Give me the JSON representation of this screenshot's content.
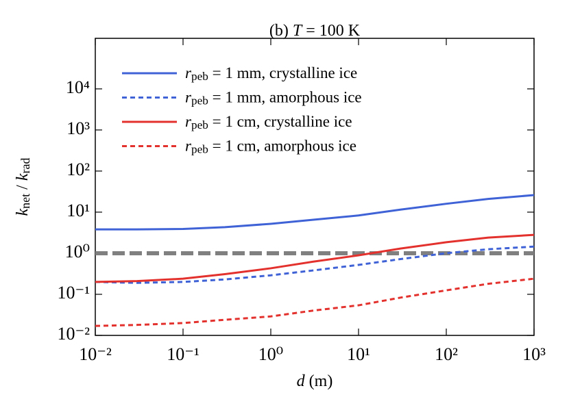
{
  "chart_data": {
    "type": "line",
    "title": "(b) T = 100 K",
    "xlabel": "d (m)",
    "ylabel": "knet / krad",
    "xscale": "log",
    "yscale": "log",
    "x": [
      0.01,
      0.03,
      0.1,
      0.3,
      1,
      3,
      10,
      30,
      100,
      300,
      1000
    ],
    "series": [
      {
        "name": "rpeb = 1 mm, crystalline ice",
        "color": "#3f62d6",
        "dash": false,
        "values": [
          3.8,
          3.8,
          3.9,
          4.3,
          5.2,
          6.5,
          8.3,
          11.5,
          16,
          21,
          26
        ]
      },
      {
        "name": "rpeb = 1 mm, amorphous ice",
        "color": "#3f62d6",
        "dash": true,
        "values": [
          0.2,
          0.19,
          0.2,
          0.23,
          0.29,
          0.38,
          0.52,
          0.72,
          1.0,
          1.25,
          1.45
        ]
      },
      {
        "name": "rpeb = 1 cm, crystalline ice",
        "color": "#e3312e",
        "dash": false,
        "values": [
          0.2,
          0.21,
          0.24,
          0.31,
          0.43,
          0.62,
          0.89,
          1.3,
          1.85,
          2.4,
          2.8
        ]
      },
      {
        "name": "rpeb = 1 cm, amorphous ice",
        "color": "#e3312e",
        "dash": true,
        "values": [
          0.017,
          0.018,
          0.02,
          0.024,
          0.029,
          0.04,
          0.054,
          0.083,
          0.125,
          0.18,
          0.24
        ]
      }
    ],
    "reference_line": {
      "value": 1,
      "color": "#808080"
    },
    "xlim": [
      0.01,
      1000
    ],
    "ylim": [
      0.01,
      170000
    ],
    "xticks": [
      {
        "value": 0.01,
        "label": "10⁻²"
      },
      {
        "value": 0.1,
        "label": "10⁻¹"
      },
      {
        "value": 1,
        "label": "10⁰"
      },
      {
        "value": 10,
        "label": "10¹"
      },
      {
        "value": 100,
        "label": "10²"
      },
      {
        "value": 1000,
        "label": "10³"
      }
    ],
    "yticks": [
      {
        "value": 0.01,
        "label": "10⁻²"
      },
      {
        "value": 0.1,
        "label": "10⁻¹"
      },
      {
        "value": 1,
        "label": "10⁰"
      },
      {
        "value": 10,
        "label": "10¹"
      },
      {
        "value": 100,
        "label": "10²"
      },
      {
        "value": 1000,
        "label": "10³"
      },
      {
        "value": 10000,
        "label": "10⁴"
      }
    ],
    "legend": "upper left",
    "grid": false
  }
}
